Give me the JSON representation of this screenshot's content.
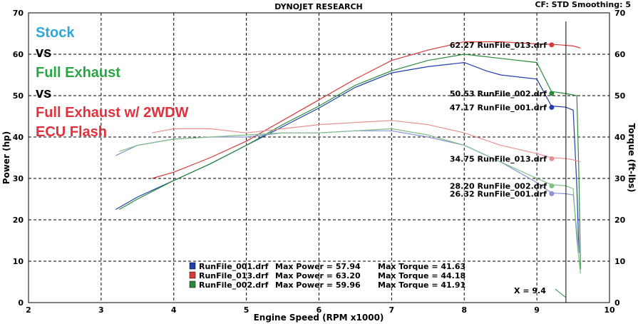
{
  "header": {
    "title": "DYNOJET RESEARCH",
    "settings": "CF: STD  Smoothing: 5"
  },
  "annotations": [
    {
      "text": "Stock",
      "color": "#29a8e0"
    },
    {
      "text": "vs",
      "color": "#000000"
    },
    {
      "text": "Full Exhaust",
      "color": "#2aa545"
    },
    {
      "text": "vs",
      "color": "#000000"
    },
    {
      "text": "Full Exhaust w/ 2WDW",
      "color": "#e0323c"
    },
    {
      "text": "ECU Flash",
      "color": "#e0323c"
    }
  ],
  "legend": [
    {
      "file": "RunFile_001.drf",
      "max_power": "Max Power = 57.94",
      "max_torque": "Max Torque = 41.63",
      "color": "#1f3fae"
    },
    {
      "file": "RunFile_013.drf",
      "max_power": "Max Power = 63.20",
      "max_torque": "Max Torque = 44.18",
      "color": "#d83a3a"
    },
    {
      "file": "RunFile_002.drf",
      "max_power": "Max Power = 59.96",
      "max_torque": "Max Torque = 41.91",
      "color": "#2a8a3a"
    }
  ],
  "cursor_label": "X = 9.4",
  "chart_data": {
    "type": "line",
    "xlabel": "Engine Speed (RPM x1000)",
    "ylabel_left": "Power (hp)",
    "ylabel_right": "Torque (ft-lbs)",
    "xlim": [
      2,
      10
    ],
    "ylim": [
      0,
      70
    ],
    "x_ticks": [
      2,
      3,
      4,
      5,
      6,
      7,
      8,
      9,
      10
    ],
    "y_ticks": [
      0,
      10,
      20,
      30,
      40,
      50,
      60,
      70
    ],
    "grid": true,
    "cursor_x": 9.4,
    "series": [
      {
        "name": "RunFile_001.drf",
        "measure": "power",
        "color": "#1f3fae",
        "end_label": "47.17 RunFile_001.drf",
        "points": [
          [
            3.2,
            22.5
          ],
          [
            3.5,
            25.5
          ],
          [
            4,
            29.5
          ],
          [
            4.5,
            33.5
          ],
          [
            5,
            38
          ],
          [
            5.5,
            42.5
          ],
          [
            6,
            47
          ],
          [
            6.5,
            52
          ],
          [
            7,
            55.5
          ],
          [
            7.5,
            57
          ],
          [
            8,
            58
          ],
          [
            8.3,
            56
          ],
          [
            8.5,
            55
          ],
          [
            9,
            54
          ],
          [
            9.2,
            47.5
          ],
          [
            9.4,
            47.2
          ],
          [
            9.5,
            46.5
          ],
          [
            9.55,
            28
          ],
          [
            9.58,
            12
          ]
        ]
      },
      {
        "name": "RunFile_013.drf",
        "measure": "power",
        "color": "#d83a3a",
        "end_label": "62.27 RunFile_013.drf",
        "points": [
          [
            3.7,
            30
          ],
          [
            4,
            31.5
          ],
          [
            4.5,
            35
          ],
          [
            5,
            39
          ],
          [
            5.5,
            44
          ],
          [
            6,
            49
          ],
          [
            6.5,
            54
          ],
          [
            7,
            58.5
          ],
          [
            7.5,
            61
          ],
          [
            8,
            63
          ],
          [
            8.5,
            63
          ],
          [
            9,
            62.5
          ],
          [
            9.3,
            62.3
          ],
          [
            9.5,
            62
          ],
          [
            9.6,
            61.5
          ]
        ]
      },
      {
        "name": "RunFile_002.drf",
        "measure": "power",
        "color": "#2a8a3a",
        "end_label": "50.53 RunFile_002.drf",
        "points": [
          [
            3.25,
            22.5
          ],
          [
            3.5,
            25
          ],
          [
            4,
            29.5
          ],
          [
            4.5,
            33.5
          ],
          [
            5,
            38
          ],
          [
            5.5,
            43
          ],
          [
            6,
            47.5
          ],
          [
            6.5,
            52.5
          ],
          [
            7,
            56
          ],
          [
            7.5,
            58.5
          ],
          [
            8,
            60
          ],
          [
            8.5,
            59
          ],
          [
            9,
            58
          ],
          [
            9.2,
            51
          ],
          [
            9.4,
            50.5
          ],
          [
            9.55,
            50
          ],
          [
            9.58,
            30
          ],
          [
            9.6,
            8
          ]
        ]
      },
      {
        "name": "RunFile_001.drf",
        "measure": "torque",
        "color": "#8a92d8",
        "end_label": "26.32 RunFile_001.drf",
        "points": [
          [
            3.2,
            35.5
          ],
          [
            3.5,
            38
          ],
          [
            4,
            39.5
          ],
          [
            4.5,
            40
          ],
          [
            5,
            40
          ],
          [
            5.5,
            41
          ],
          [
            6,
            41
          ],
          [
            6.5,
            41.5
          ],
          [
            7,
            41.5
          ],
          [
            7.5,
            40
          ],
          [
            8,
            38
          ],
          [
            8.5,
            34
          ],
          [
            9,
            29
          ],
          [
            9.2,
            26.5
          ],
          [
            9.4,
            26.3
          ],
          [
            9.5,
            26
          ],
          [
            9.58,
            12
          ]
        ]
      },
      {
        "name": "RunFile_013.drf",
        "measure": "torque",
        "color": "#e89090",
        "end_label": "34.75 RunFile_013.drf",
        "points": [
          [
            3.7,
            41
          ],
          [
            4,
            42
          ],
          [
            4.5,
            42
          ],
          [
            5,
            41
          ],
          [
            5.5,
            42
          ],
          [
            6,
            43
          ],
          [
            6.5,
            43.5
          ],
          [
            7,
            44
          ],
          [
            7.5,
            43
          ],
          [
            8,
            41
          ],
          [
            8.5,
            38
          ],
          [
            9,
            36
          ],
          [
            9.2,
            35
          ],
          [
            9.4,
            34.8
          ],
          [
            9.5,
            34.5
          ],
          [
            9.6,
            34
          ]
        ]
      },
      {
        "name": "RunFile_002.drf",
        "measure": "torque",
        "color": "#7fbf86",
        "end_label": "28.20 RunFile_002.drf",
        "points": [
          [
            3.25,
            36.5
          ],
          [
            3.5,
            38
          ],
          [
            4,
            39.5
          ],
          [
            4.5,
            40
          ],
          [
            5,
            40.5
          ],
          [
            5.5,
            41
          ],
          [
            6,
            41
          ],
          [
            6.5,
            41.5
          ],
          [
            7,
            42
          ],
          [
            7.5,
            40.5
          ],
          [
            8,
            38
          ],
          [
            8.5,
            34
          ],
          [
            9,
            30
          ],
          [
            9.2,
            28.5
          ],
          [
            9.4,
            28.2
          ],
          [
            9.5,
            27.5
          ],
          [
            9.55,
            15
          ],
          [
            9.6,
            7
          ]
        ]
      }
    ]
  }
}
